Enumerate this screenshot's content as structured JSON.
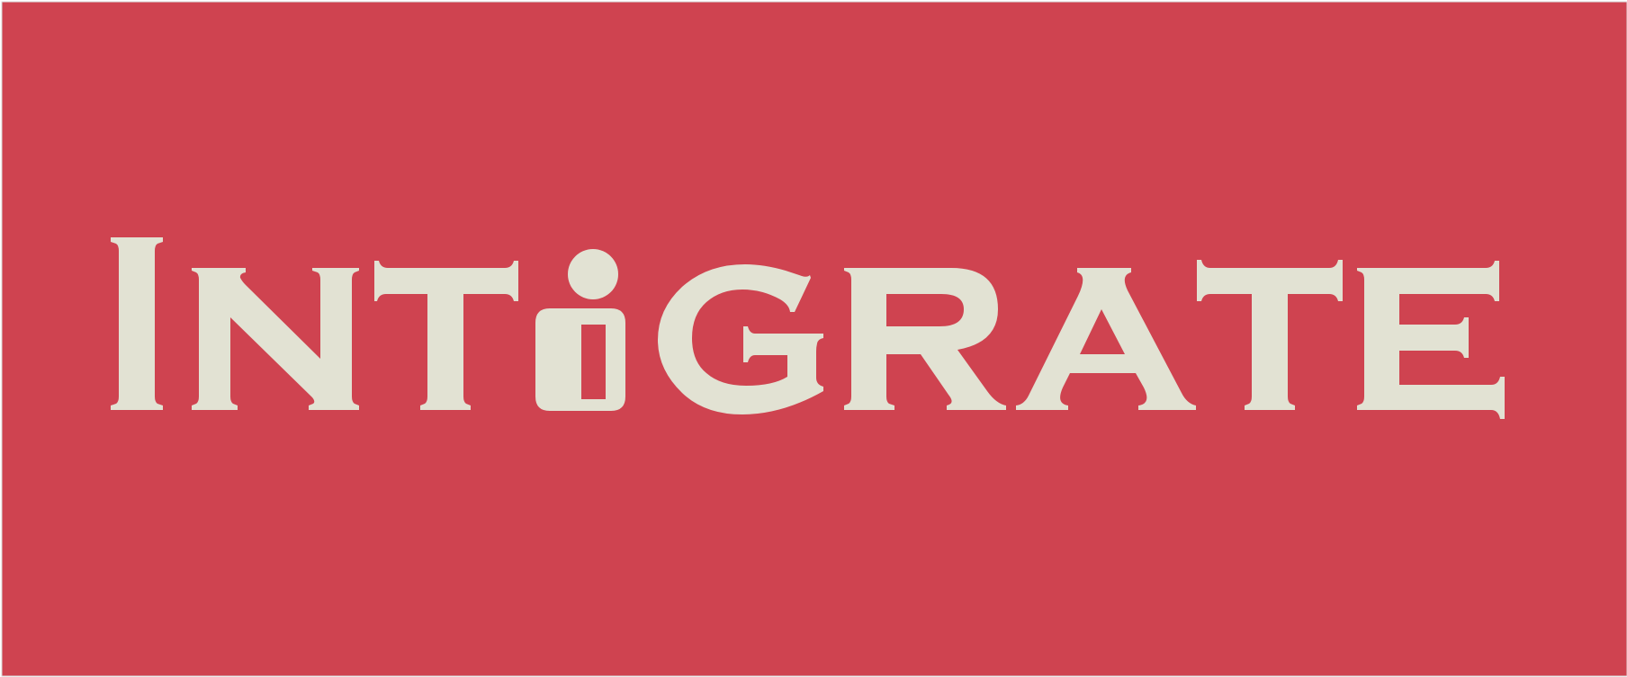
{
  "logo": {
    "wordmark": "INTiGRATE",
    "letters": [
      "I",
      "N",
      "T",
      "i",
      "G",
      "R",
      "A",
      "T",
      "E"
    ],
    "lettering_style": "serif-capitals-with-boxed-i-glyph"
  },
  "colors": {
    "background": "#CF4350",
    "letterform": "#E2E2D3",
    "frame": "#D9D9D9"
  }
}
